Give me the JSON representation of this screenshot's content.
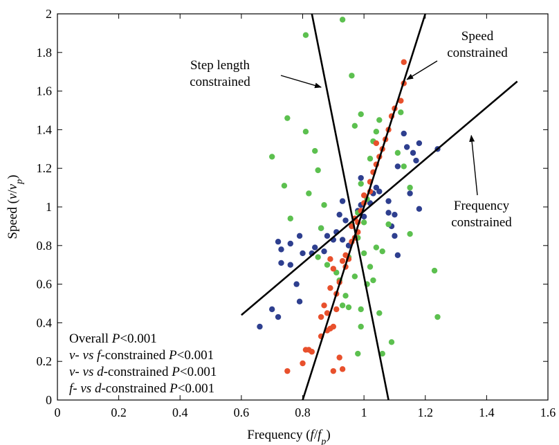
{
  "chart_data": {
    "type": "scatter",
    "xlabel": {
      "main": "Frequency (",
      "var": "f",
      "sep": "/",
      "var2": "f",
      "sub": "p",
      "close": ")"
    },
    "ylabel": {
      "main": "Speed (",
      "var": "v",
      "sep": "/",
      "var2": "v",
      "sub": "p",
      "close": ")"
    },
    "xlim": [
      0,
      1.6
    ],
    "ylim": [
      0,
      2
    ],
    "xticks": [
      0,
      0.2,
      0.4,
      0.6,
      0.8,
      1,
      1.2,
      1.4,
      1.6
    ],
    "yticks": [
      0,
      0.2,
      0.4,
      0.6,
      0.8,
      1,
      1.2,
      1.4,
      1.6,
      1.8,
      2
    ],
    "xtick_labels": [
      "0",
      "0.2",
      "0.4",
      "0.6",
      "0.8",
      "1",
      "1.2",
      "1.4",
      "1.6"
    ],
    "ytick_labels": [
      "0",
      "0.2",
      "0.4",
      "0.6",
      "0.8",
      "1",
      "1.2",
      "1.4",
      "1.6",
      "1.8",
      "2"
    ],
    "colors": {
      "blue": "#2e3f8f",
      "green": "#5cc04f",
      "red": "#e8502c",
      "line": "#000000"
    },
    "series": [
      {
        "color": "blue",
        "points": [
          [
            0.66,
            0.38
          ],
          [
            0.72,
            0.43
          ],
          [
            0.7,
            0.47
          ],
          [
            0.79,
            0.51
          ],
          [
            0.78,
            0.6
          ],
          [
            0.73,
            0.71
          ],
          [
            0.76,
            0.7
          ],
          [
            0.8,
            0.76
          ],
          [
            0.72,
            0.82
          ],
          [
            0.73,
            0.78
          ],
          [
            0.76,
            0.81
          ],
          [
            0.79,
            0.85
          ],
          [
            0.84,
            0.79
          ],
          [
            0.83,
            0.76
          ],
          [
            0.87,
            0.77
          ],
          [
            0.88,
            0.85
          ],
          [
            0.86,
            0.89
          ],
          [
            0.9,
            0.83
          ],
          [
            0.91,
            0.87
          ],
          [
            0.93,
            0.83
          ],
          [
            0.95,
            0.8
          ],
          [
            0.92,
            0.96
          ],
          [
            0.94,
            0.93
          ],
          [
            0.93,
            1.03
          ],
          [
            0.96,
            0.9
          ],
          [
            0.98,
            0.98
          ],
          [
            0.99,
            1.01
          ],
          [
            1.0,
            0.95
          ],
          [
            1.02,
            1.02
          ],
          [
            1.03,
            1.07
          ],
          [
            1.04,
            1.1
          ],
          [
            1.05,
            1.08
          ],
          [
            0.99,
            1.15
          ],
          [
            1.08,
            0.97
          ],
          [
            1.08,
            1.03
          ],
          [
            1.09,
            0.9
          ],
          [
            1.1,
            0.96
          ],
          [
            1.1,
            0.85
          ],
          [
            1.11,
            0.75
          ],
          [
            1.11,
            1.21
          ],
          [
            1.13,
            1.38
          ],
          [
            1.14,
            1.31
          ],
          [
            1.16,
            1.28
          ],
          [
            1.17,
            1.24
          ],
          [
            1.18,
            1.33
          ],
          [
            1.18,
            0.99
          ],
          [
            1.15,
            1.07
          ],
          [
            1.24,
            1.3
          ]
        ]
      },
      {
        "color": "green",
        "points": [
          [
            0.81,
            1.89
          ],
          [
            0.93,
            1.97
          ],
          [
            0.96,
            1.68
          ],
          [
            0.7,
            1.26
          ],
          [
            0.75,
            1.46
          ],
          [
            0.81,
            1.39
          ],
          [
            0.84,
            1.29
          ],
          [
            0.85,
            1.19
          ],
          [
            0.74,
            1.11
          ],
          [
            0.82,
            1.07
          ],
          [
            0.87,
            1.01
          ],
          [
            0.86,
            0.89
          ],
          [
            0.76,
            0.94
          ],
          [
            0.91,
            0.66
          ],
          [
            0.88,
            0.7
          ],
          [
            0.85,
            0.74
          ],
          [
            0.94,
            0.54
          ],
          [
            0.93,
            0.49
          ],
          [
            0.92,
            0.62
          ],
          [
            0.95,
            0.74
          ],
          [
            0.96,
            0.91
          ],
          [
            0.98,
            0.97
          ],
          [
            0.97,
            1.42
          ],
          [
            0.99,
            1.48
          ],
          [
            1.0,
            0.92
          ],
          [
            0.99,
            1.12
          ],
          [
            1.01,
            1.04
          ],
          [
            1.02,
            1.25
          ],
          [
            1.03,
            1.34
          ],
          [
            1.04,
            1.39
          ],
          [
            1.05,
            1.45
          ],
          [
            1.0,
            0.76
          ],
          [
            1.02,
            0.69
          ],
          [
            1.03,
            0.62
          ],
          [
            1.04,
            0.79
          ],
          [
            1.06,
            0.77
          ],
          [
            1.01,
            0.6
          ],
          [
            0.99,
            0.38
          ],
          [
            0.98,
            0.24
          ],
          [
            1.05,
            0.45
          ],
          [
            0.99,
            0.47
          ],
          [
            0.95,
            0.48
          ],
          [
            1.06,
            0.24
          ],
          [
            1.09,
            0.3
          ],
          [
            1.08,
            0.91
          ],
          [
            1.12,
            1.49
          ],
          [
            1.11,
            1.28
          ],
          [
            1.13,
            1.21
          ],
          [
            1.15,
            1.1
          ],
          [
            1.15,
            0.86
          ],
          [
            1.23,
            0.67
          ],
          [
            1.24,
            0.43
          ],
          [
            0.97,
            0.64
          ],
          [
            0.98,
            0.84
          ]
        ]
      },
      {
        "color": "red",
        "points": [
          [
            0.75,
            0.15
          ],
          [
            0.8,
            0.19
          ],
          [
            0.81,
            0.26
          ],
          [
            0.82,
            0.26
          ],
          [
            0.83,
            0.25
          ],
          [
            0.86,
            0.33
          ],
          [
            0.88,
            0.36
          ],
          [
            0.86,
            0.43
          ],
          [
            0.88,
            0.45
          ],
          [
            0.89,
            0.37
          ],
          [
            0.9,
            0.38
          ],
          [
            0.91,
            0.47
          ],
          [
            0.87,
            0.49
          ],
          [
            0.89,
            0.58
          ],
          [
            0.91,
            0.55
          ],
          [
            0.92,
            0.61
          ],
          [
            0.94,
            0.69
          ],
          [
            0.93,
            0.72
          ],
          [
            0.95,
            0.73
          ],
          [
            0.96,
            0.82
          ],
          [
            0.97,
            0.84
          ],
          [
            0.98,
            0.87
          ],
          [
            0.98,
            0.92
          ],
          [
            0.99,
            0.98
          ],
          [
            1.0,
            1.02
          ],
          [
            1.0,
            1.06
          ],
          [
            1.02,
            1.08
          ],
          [
            1.02,
            1.13
          ],
          [
            1.03,
            1.18
          ],
          [
            1.04,
            1.22
          ],
          [
            1.05,
            1.26
          ],
          [
            1.06,
            1.3
          ],
          [
            1.07,
            1.35
          ],
          [
            1.08,
            1.4
          ],
          [
            1.09,
            1.47
          ],
          [
            1.1,
            1.51
          ],
          [
            1.12,
            1.55
          ],
          [
            1.13,
            1.64
          ],
          [
            1.13,
            1.75
          ],
          [
            0.92,
            0.22
          ],
          [
            0.9,
            0.15
          ],
          [
            0.93,
            0.16
          ],
          [
            0.94,
            0.75
          ],
          [
            0.89,
            0.73
          ],
          [
            0.9,
            0.68
          ],
          [
            0.96,
            0.9
          ],
          [
            0.97,
            0.94
          ],
          [
            1.04,
            1.33
          ]
        ]
      }
    ],
    "lines": [
      {
        "x1": 0.6,
        "y1": 0.44,
        "x2": 1.5,
        "y2": 1.65
      },
      {
        "x1": 0.8,
        "y1": 0.0,
        "x2": 1.2,
        "y2": 2.0
      },
      {
        "x1": 0.83,
        "y1": 2.0,
        "x2": 1.08,
        "y2": 0.0
      }
    ],
    "annotations": [
      {
        "lines": [
          "Step length",
          "constrained"
        ],
        "arrow": {
          "to": [
            0.86,
            1.62
          ]
        }
      },
      {
        "lines": [
          "Speed",
          "constrained"
        ],
        "arrow": {
          "to": [
            1.14,
            1.66
          ]
        }
      },
      {
        "lines": [
          "Frequency",
          "constrained"
        ],
        "arrow": {
          "to": [
            1.35,
            1.37
          ]
        }
      }
    ],
    "stats": [
      [
        {
          "t": "Overall "
        },
        {
          "t": "P",
          "i": true
        },
        {
          "t": "<0.001"
        }
      ],
      [
        {
          "t": "v-",
          "i": true
        },
        {
          "t": " vs ",
          "i": true
        },
        {
          "t": "f",
          "i": true
        },
        {
          "t": "-constrained "
        },
        {
          "t": "P",
          "i": true
        },
        {
          "t": "<0.001"
        }
      ],
      [
        {
          "t": "v-",
          "i": true
        },
        {
          "t": " vs ",
          "i": true
        },
        {
          "t": "d",
          "i": true
        },
        {
          "t": "-constrained "
        },
        {
          "t": "P",
          "i": true
        },
        {
          "t": "<0.001"
        }
      ],
      [
        {
          "t": "f-",
          "i": true
        },
        {
          "t": " vs ",
          "i": true
        },
        {
          "t": "d",
          "i": true
        },
        {
          "t": "-constrained "
        },
        {
          "t": "P",
          "i": true
        },
        {
          "t": "<0.001"
        }
      ]
    ]
  }
}
